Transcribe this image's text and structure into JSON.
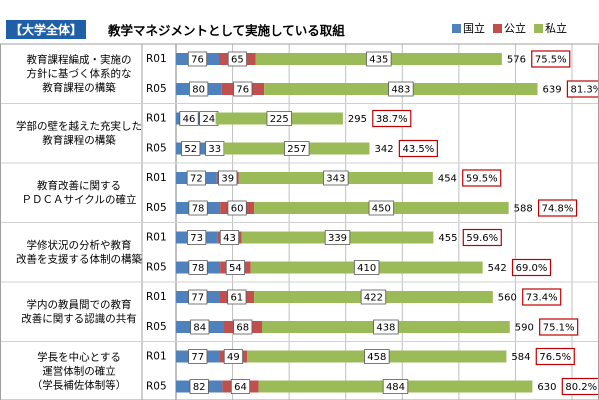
{
  "title": {
    "badge": "【大学全体】",
    "text": "教学マネジメントとして実施している取組"
  },
  "legend": [
    {
      "name": "国立",
      "color": "#4f81bd"
    },
    {
      "name": "公立",
      "color": "#c0504d"
    },
    {
      "name": "私立",
      "color": "#9bbb59"
    }
  ],
  "chart_data": {
    "type": "bar",
    "orientation": "horizontal",
    "stacked": true,
    "xlim": [
      0,
      700
    ],
    "grid": true,
    "series": [
      {
        "name": "国立",
        "color": "#4f81bd"
      },
      {
        "name": "公立",
        "color": "#c0504d"
      },
      {
        "name": "私立",
        "color": "#9bbb59"
      }
    ],
    "groups": [
      {
        "label": [
          "教育課程編成・実施の",
          "方針に基づく体系的な",
          "教育課程の構築"
        ],
        "rows": [
          {
            "year": "R01",
            "values": [
              76,
              65,
              435
            ],
            "total": 576,
            "pct": "75.5%"
          },
          {
            "year": "R05",
            "values": [
              80,
              76,
              483
            ],
            "total": 639,
            "pct": "81.3%"
          }
        ]
      },
      {
        "label": [
          "学部の壁を越えた充実した",
          "教育課程の構築"
        ],
        "rows": [
          {
            "year": "R01",
            "values": [
              46,
              24,
              225
            ],
            "total": 295,
            "pct": "38.7%"
          },
          {
            "year": "R05",
            "values": [
              52,
              33,
              257
            ],
            "total": 342,
            "pct": "43.5%"
          }
        ]
      },
      {
        "label": [
          "教育改善に関する",
          "ＰＤＣＡサイクルの確立"
        ],
        "rows": [
          {
            "year": "R01",
            "values": [
              72,
              39,
              343
            ],
            "total": 454,
            "pct": "59.5%"
          },
          {
            "year": "R05",
            "values": [
              78,
              60,
              450
            ],
            "total": 588,
            "pct": "74.8%"
          }
        ]
      },
      {
        "label": [
          "学修状況の分析や教育",
          "改善を支援する体制の構築"
        ],
        "rows": [
          {
            "year": "R01",
            "values": [
              73,
              43,
              339
            ],
            "total": 455,
            "pct": "59.6%"
          },
          {
            "year": "R05",
            "values": [
              78,
              54,
              410
            ],
            "total": 542,
            "pct": "69.0%"
          }
        ]
      },
      {
        "label": [
          "学内の教員間での教育",
          "改善に関する認識の共有"
        ],
        "rows": [
          {
            "year": "R01",
            "values": [
              77,
              61,
              422
            ],
            "total": 560,
            "pct": "73.4%"
          },
          {
            "year": "R05",
            "values": [
              84,
              68,
              438
            ],
            "total": 590,
            "pct": "75.1%"
          }
        ]
      },
      {
        "label": [
          "学長を中心とする",
          "運営体制の確立",
          "（学長補佐体制等）"
        ],
        "rows": [
          {
            "year": "R01",
            "values": [
              77,
              49,
              458
            ],
            "total": 584,
            "pct": "76.5%"
          },
          {
            "year": "R05",
            "values": [
              82,
              64,
              484
            ],
            "total": 630,
            "pct": "80.2%"
          }
        ]
      }
    ]
  }
}
